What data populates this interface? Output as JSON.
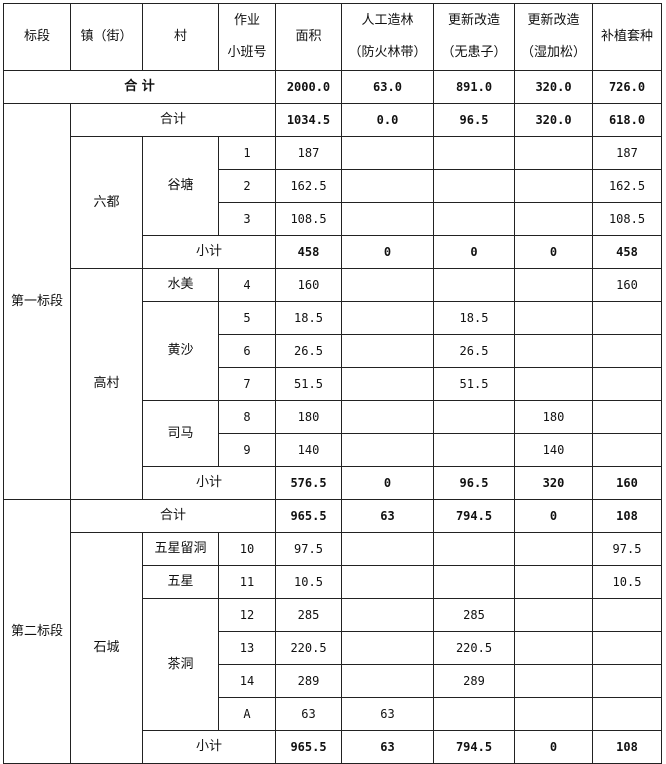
{
  "header": [
    "标段",
    "镇（街）",
    "村",
    "作业\n小班号",
    "面积",
    "人工造林\n（防火林带）",
    "更新改造\n（无患子）",
    "更新改造\n（湿加松）",
    "补植套种"
  ],
  "grand_total": {
    "label": "合  计",
    "values": [
      "2000.0",
      "63.0",
      "891.0",
      "320.0",
      "726.0"
    ]
  },
  "sections": [
    {
      "name": "第一标段",
      "total": {
        "label": "合计",
        "values": [
          "1034.5",
          "0.0",
          "96.5",
          "320.0",
          "618.0"
        ]
      },
      "towns": [
        {
          "name": "六都",
          "villages": [
            {
              "name": "谷塘",
              "plots": [
                {
                  "id": "1",
                  "values": [
                    "187",
                    "",
                    "",
                    "",
                    "187"
                  ]
                },
                {
                  "id": "2",
                  "values": [
                    "162.5",
                    "",
                    "",
                    "",
                    "162.5"
                  ]
                },
                {
                  "id": "3",
                  "values": [
                    "108.5",
                    "",
                    "",
                    "",
                    "108.5"
                  ]
                }
              ]
            }
          ],
          "subtotal": {
            "label": "小计",
            "values": [
              "458",
              "0",
              "0",
              "0",
              "458"
            ]
          }
        },
        {
          "name": "高村",
          "villages": [
            {
              "name": "水美",
              "plots": [
                {
                  "id": "4",
                  "values": [
                    "160",
                    "",
                    "",
                    "",
                    "160"
                  ]
                }
              ]
            },
            {
              "name": "黄沙",
              "plots": [
                {
                  "id": "5",
                  "values": [
                    "18.5",
                    "",
                    "18.5",
                    "",
                    ""
                  ]
                },
                {
                  "id": "6",
                  "values": [
                    "26.5",
                    "",
                    "26.5",
                    "",
                    ""
                  ]
                },
                {
                  "id": "7",
                  "values": [
                    "51.5",
                    "",
                    "51.5",
                    "",
                    ""
                  ]
                }
              ]
            },
            {
              "name": "司马",
              "plots": [
                {
                  "id": "8",
                  "values": [
                    "180",
                    "",
                    "",
                    "180",
                    ""
                  ]
                },
                {
                  "id": "9",
                  "values": [
                    "140",
                    "",
                    "",
                    "140",
                    ""
                  ]
                }
              ]
            }
          ],
          "subtotal": {
            "label": "小计",
            "values": [
              "576.5",
              "0",
              "96.5",
              "320",
              "160"
            ]
          }
        }
      ]
    },
    {
      "name": "第二标段",
      "total": {
        "label": "合计",
        "values": [
          "965.5",
          "63",
          "794.5",
          "0",
          "108"
        ]
      },
      "towns": [
        {
          "name": "石城",
          "villages": [
            {
              "name": "五星留洞",
              "plots": [
                {
                  "id": "10",
                  "values": [
                    "97.5",
                    "",
                    "",
                    "",
                    "97.5"
                  ]
                }
              ]
            },
            {
              "name": "五星",
              "plots": [
                {
                  "id": "11",
                  "values": [
                    "10.5",
                    "",
                    "",
                    "",
                    "10.5"
                  ]
                }
              ]
            },
            {
              "name": "茶洞",
              "plots": [
                {
                  "id": "12",
                  "values": [
                    "285",
                    "",
                    "285",
                    "",
                    ""
                  ]
                },
                {
                  "id": "13",
                  "values": [
                    "220.5",
                    "",
                    "220.5",
                    "",
                    ""
                  ]
                },
                {
                  "id": "14",
                  "values": [
                    "289",
                    "",
                    "289",
                    "",
                    ""
                  ]
                },
                {
                  "id": "A",
                  "values": [
                    "63",
                    "63",
                    "",
                    "",
                    ""
                  ]
                }
              ]
            }
          ],
          "subtotal": {
            "label": "小计",
            "values": [
              "965.5",
              "63",
              "794.5",
              "0",
              "108"
            ]
          }
        }
      ]
    }
  ]
}
